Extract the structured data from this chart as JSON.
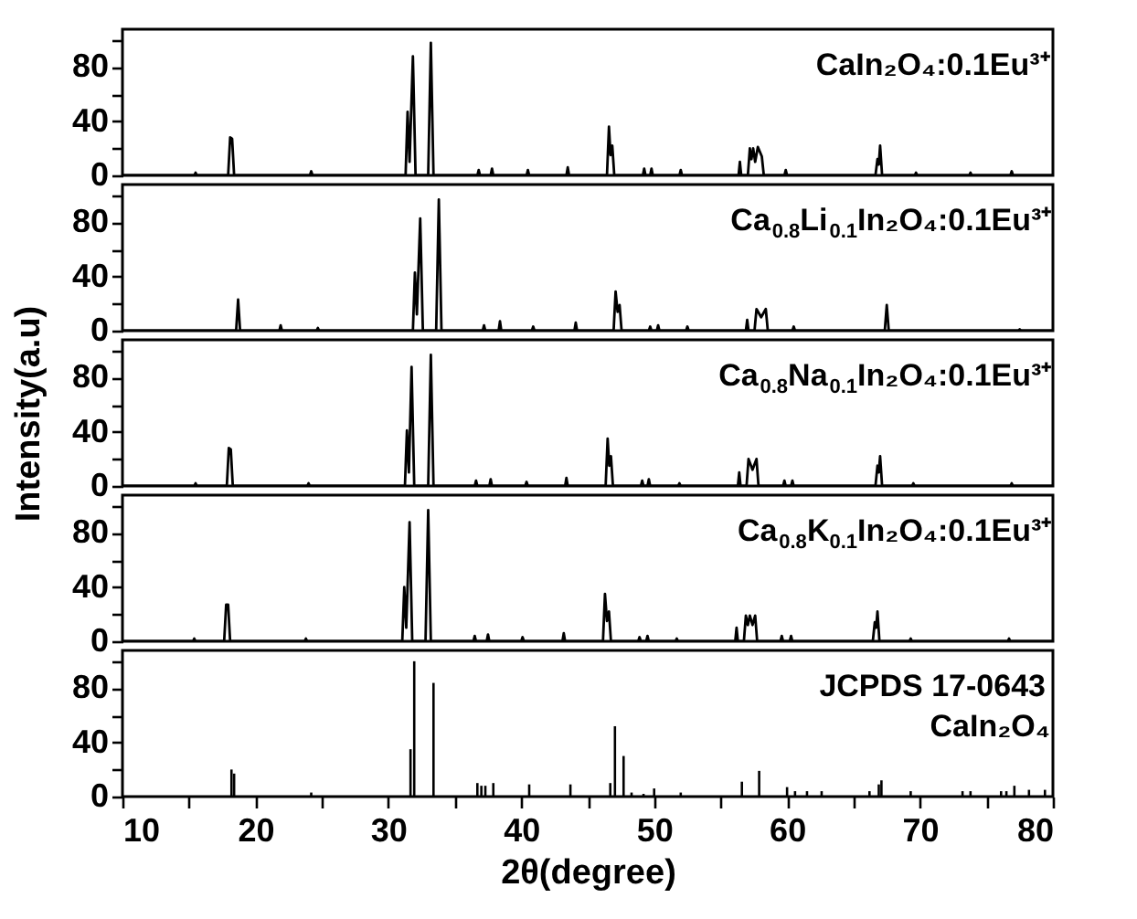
{
  "chart_data": [
    {
      "type": "line",
      "xlim": [
        10,
        80
      ],
      "ylim": [
        0,
        108
      ],
      "yticks": [
        0,
        {
          "value": 20,
          "label": null
        },
        40,
        {
          "value": 60,
          "label": null
        },
        80,
        {
          "value": 100,
          "label": null
        }
      ],
      "tick_labels": "y",
      "series": [
        {
          "name": "CaIn₂O₄:0.1Eu³⁺",
          "color": "#000000",
          "x": [
            10,
            15.4,
            15.5,
            15.6,
            17.95,
            18.1,
            18.25,
            18.4,
            24.1,
            24.2,
            24.3,
            31.3,
            31.45,
            31.6,
            31.85,
            32.05,
            33.0,
            33.2,
            33.4,
            36.7,
            36.8,
            36.9,
            37.7,
            37.8,
            37.9,
            40.4,
            40.5,
            40.6,
            43.4,
            43.5,
            43.6,
            46.45,
            46.6,
            46.72,
            46.85,
            47.0,
            49.15,
            49.25,
            49.35,
            49.7,
            49.8,
            49.9,
            51.9,
            52.0,
            52.1,
            56.35,
            56.45,
            56.55,
            57.05,
            57.2,
            57.32,
            57.45,
            57.6,
            57.8,
            58.1,
            58.25,
            59.8,
            59.9,
            60.0,
            66.65,
            66.8,
            66.9,
            67.0,
            67.15,
            69.6,
            69.7,
            69.8,
            73.7,
            73.8,
            73.9,
            76.8,
            76.9,
            77.0,
            80
          ],
          "values": [
            0,
            0,
            2,
            0,
            0,
            28,
            27,
            0,
            0,
            3,
            0,
            0,
            47,
            10,
            88,
            0,
            0,
            98,
            0,
            0,
            4,
            0,
            0,
            5,
            0,
            0,
            4,
            0,
            0,
            6,
            0,
            0,
            36,
            15,
            22,
            0,
            0,
            5,
            0,
            0,
            5,
            0,
            0,
            4,
            0,
            0,
            10,
            0,
            0,
            20,
            12,
            20,
            10,
            21,
            14,
            0,
            0,
            4,
            0,
            0,
            12,
            8,
            22,
            0,
            0,
            2,
            0,
            0,
            2,
            0,
            0,
            3,
            0,
            0
          ]
        }
      ]
    },
    {
      "type": "line",
      "xlim": [
        10,
        80
      ],
      "ylim": [
        0,
        108
      ],
      "yticks": [
        0,
        {
          "value": 20,
          "label": null
        },
        40,
        {
          "value": 60,
          "label": null
        },
        80,
        {
          "value": 100,
          "label": null
        }
      ],
      "tick_labels": "y",
      "series": [
        {
          "name": "Ca$_{0.8}$Li$_{0.1}$In₂O₄:0.1Eu³⁺",
          "color": "#000000",
          "x": [
            10,
            18.55,
            18.7,
            18.85,
            21.8,
            21.9,
            22.0,
            24.6,
            24.7,
            24.8,
            31.85,
            32.0,
            32.15,
            32.4,
            32.6,
            33.6,
            33.8,
            34.0,
            37.1,
            37.2,
            37.3,
            38.3,
            38.4,
            38.5,
            40.8,
            40.9,
            41.0,
            44.0,
            44.1,
            44.2,
            46.95,
            47.1,
            47.25,
            47.4,
            47.55,
            49.6,
            49.7,
            49.8,
            50.2,
            50.3,
            50.4,
            52.4,
            52.5,
            52.6,
            56.9,
            57.0,
            57.1,
            57.55,
            57.7,
            58.05,
            58.4,
            58.55,
            60.4,
            60.5,
            60.6,
            67.35,
            67.5,
            67.65,
            77.4,
            77.5,
            77.6,
            80
          ],
          "values": [
            0,
            0,
            23,
            0,
            0,
            4,
            0,
            0,
            2,
            0,
            0,
            43,
            12,
            83,
            0,
            0,
            97,
            0,
            0,
            4,
            0,
            0,
            7,
            0,
            0,
            3,
            0,
            0,
            6,
            0,
            0,
            29,
            14,
            19,
            0,
            0,
            3,
            0,
            0,
            4,
            0,
            0,
            3,
            0,
            0,
            8,
            0,
            0,
            16,
            10,
            16,
            0,
            0,
            3,
            0,
            0,
            19,
            0,
            0,
            1,
            0,
            0
          ]
        }
      ]
    },
    {
      "type": "line",
      "xlim": [
        10,
        80
      ],
      "ylim": [
        0,
        108
      ],
      "yticks": [
        0,
        {
          "value": 20,
          "label": null
        },
        40,
        {
          "value": 60,
          "label": null
        },
        80,
        {
          "value": 100,
          "label": null
        }
      ],
      "tick_labels": "y",
      "ylabel": "Intensity(a.u)",
      "series": [
        {
          "name": "Ca$_{0.8}$Na$_{0.1}$In₂O₄:0.1Eu³⁺",
          "color": "#000000",
          "x": [
            10,
            15.4,
            15.5,
            15.6,
            17.85,
            18.0,
            18.15,
            18.3,
            23.9,
            24.0,
            24.1,
            31.25,
            31.4,
            31.55,
            31.75,
            31.95,
            33.0,
            33.2,
            33.4,
            36.5,
            36.6,
            36.7,
            37.6,
            37.7,
            37.8,
            40.3,
            40.4,
            40.5,
            43.3,
            43.4,
            43.5,
            46.35,
            46.5,
            46.62,
            46.75,
            46.9,
            49.0,
            49.1,
            49.2,
            49.5,
            49.6,
            49.7,
            51.8,
            51.9,
            52.0,
            56.3,
            56.4,
            56.5,
            56.95,
            57.1,
            57.4,
            57.7,
            57.85,
            59.7,
            59.8,
            59.9,
            60.3,
            60.4,
            60.5,
            66.65,
            66.8,
            66.9,
            67.0,
            67.15,
            69.4,
            69.5,
            69.6,
            76.8,
            76.9,
            77.0,
            80
          ],
          "values": [
            0,
            0,
            2,
            0,
            0,
            28,
            27,
            0,
            0,
            2,
            0,
            0,
            41,
            10,
            88,
            0,
            0,
            97,
            0,
            0,
            4,
            0,
            0,
            5,
            0,
            0,
            3,
            0,
            0,
            6,
            0,
            0,
            35,
            15,
            22,
            0,
            0,
            4,
            0,
            0,
            5,
            0,
            0,
            2,
            0,
            0,
            10,
            0,
            0,
            20,
            12,
            20,
            0,
            0,
            4,
            0,
            0,
            4,
            0,
            0,
            15,
            10,
            22,
            0,
            0,
            2,
            0,
            0,
            2,
            0,
            0
          ]
        }
      ]
    },
    {
      "type": "line",
      "xlim": [
        10,
        80
      ],
      "ylim": [
        0,
        108
      ],
      "yticks": [
        0,
        {
          "value": 20,
          "label": null
        },
        40,
        {
          "value": 60,
          "label": null
        },
        80,
        {
          "value": 100,
          "label": null
        }
      ],
      "tick_labels": "y",
      "series": [
        {
          "name": "Ca$_{0.8}$K$_{0.1}$In₂O₄:0.1Eu³⁺",
          "color": "#000000",
          "x": [
            10,
            15.3,
            15.4,
            15.5,
            17.65,
            17.8,
            17.95,
            18.1,
            23.7,
            23.8,
            23.9,
            31.05,
            31.2,
            31.35,
            31.6,
            31.8,
            32.8,
            33.0,
            33.2,
            36.4,
            36.5,
            36.6,
            37.4,
            37.5,
            37.6,
            40.0,
            40.1,
            40.2,
            43.1,
            43.2,
            43.3,
            46.15,
            46.3,
            46.45,
            46.6,
            46.75,
            48.8,
            48.9,
            49.0,
            49.4,
            49.5,
            49.6,
            51.6,
            51.7,
            51.8,
            56.1,
            56.2,
            56.3,
            56.75,
            56.9,
            57.05,
            57.2,
            57.4,
            57.6,
            57.75,
            59.5,
            59.6,
            59.7,
            60.2,
            60.3,
            60.4,
            66.45,
            66.6,
            66.7,
            66.8,
            66.95,
            69.2,
            69.3,
            69.4,
            76.6,
            76.7,
            76.8,
            80
          ],
          "values": [
            0,
            0,
            2,
            0,
            0,
            27,
            27,
            0,
            0,
            2,
            0,
            0,
            40,
            10,
            88,
            0,
            0,
            97,
            0,
            0,
            4,
            0,
            0,
            5,
            0,
            0,
            3,
            0,
            0,
            6,
            0,
            0,
            35,
            15,
            22,
            0,
            0,
            3,
            0,
            0,
            4,
            0,
            0,
            2,
            0,
            0,
            10,
            0,
            0,
            19,
            12,
            19,
            12,
            19,
            0,
            0,
            4,
            0,
            0,
            4,
            0,
            0,
            14,
            10,
            22,
            0,
            0,
            2,
            0,
            0,
            2,
            0,
            0
          ]
        }
      ]
    },
    {
      "type": "bar",
      "xlim": [
        10,
        80
      ],
      "ylim": [
        0,
        108
      ],
      "yticks": [
        0,
        {
          "value": 20,
          "label": null
        },
        40,
        {
          "value": 60,
          "label": null
        },
        80,
        {
          "value": 100,
          "label": null
        }
      ],
      "xticks": [
        10,
        {
          "value": 15,
          "label": null
        },
        20,
        {
          "value": 25,
          "label": null
        },
        30,
        {
          "value": 35,
          "label": null
        },
        40,
        {
          "value": 45,
          "label": null
        },
        50,
        {
          "value": 55,
          "label": null
        },
        60,
        {
          "value": 65,
          "label": null
        },
        70,
        {
          "value": 75,
          "label": null
        },
        80
      ],
      "xlabel": "2θ(degree)",
      "annotations": [
        "JCPDS 17-0643",
        "CaIn₂O₄"
      ],
      "series": [
        {
          "color": "#000000",
          "x": [
            18.2,
            18.4,
            24.2,
            31.67,
            31.95,
            33.4,
            36.7,
            37.0,
            37.3,
            37.9,
            40.6,
            43.7,
            46.7,
            47.05,
            47.7,
            48.3,
            49.2,
            50.0,
            52.0,
            56.6,
            57.9,
            60.0,
            60.6,
            61.5,
            62.6,
            66.2,
            66.9,
            67.1,
            69.3,
            73.2,
            73.8,
            76.1,
            76.5,
            77.1,
            78.2,
            79.4
          ],
          "values": [
            20,
            17,
            3,
            35,
            100,
            84,
            10,
            8,
            8,
            10,
            9,
            9,
            10,
            52,
            30,
            3,
            2,
            6,
            3,
            11,
            19,
            7,
            4,
            4,
            4,
            4,
            9,
            12,
            4,
            4,
            4,
            4,
            4,
            8,
            5,
            5
          ]
        }
      ]
    }
  ]
}
